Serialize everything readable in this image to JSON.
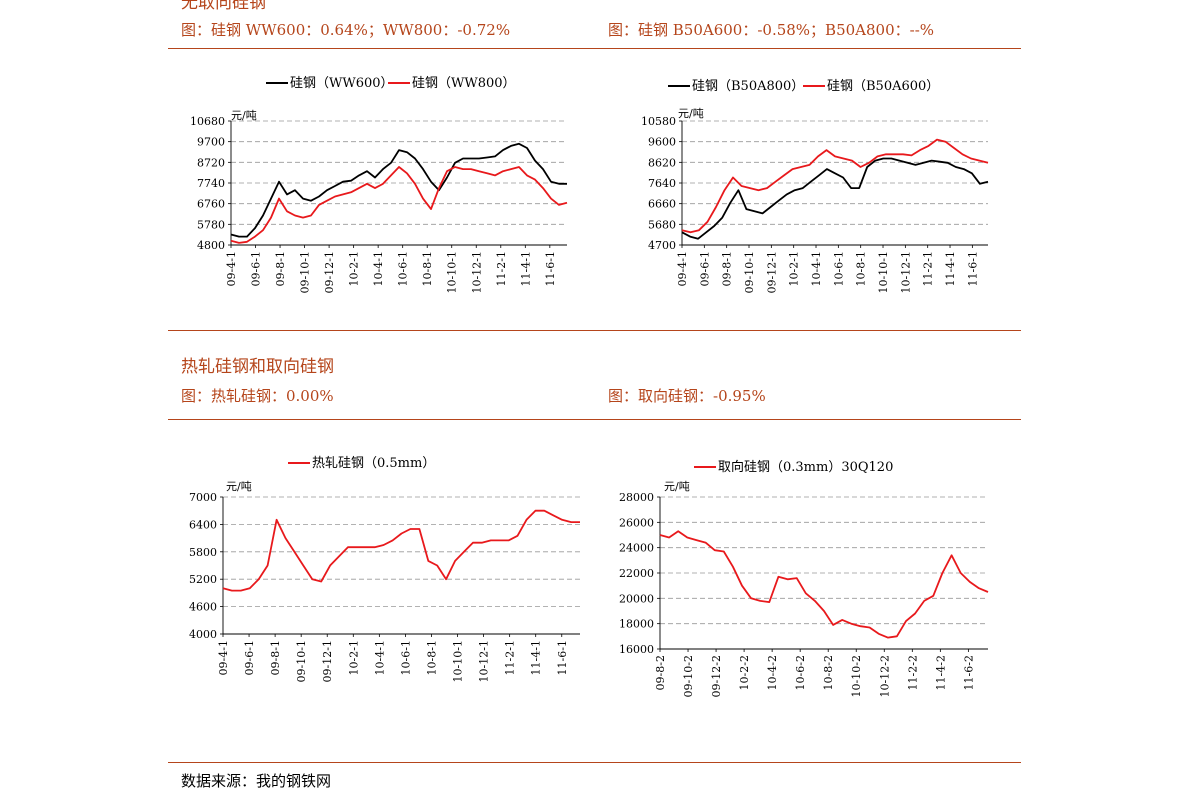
{
  "section1": {
    "title": "无取向硅钢",
    "fig_left": "图：硅钢 WW600：0.64%；WW800：-0.72%",
    "fig_right": "图：硅钢 B50A600：-0.58%；B50A800：--%"
  },
  "section2": {
    "title": "热轧硅钢和取向硅钢",
    "fig_left": "图：热轧硅钢：0.00%",
    "fig_right": "图：取向硅钢：-0.95%"
  },
  "source": "数据来源：我的钢铁网",
  "colors": {
    "accent": "#b5451b",
    "black_series": "#000000",
    "red_series": "#e8191c",
    "grid": "#999999"
  },
  "chart_data": [
    {
      "id": "ww",
      "type": "line",
      "unit": "元/吨",
      "ylim": [
        4800,
        10680
      ],
      "yticks": [
        4800,
        5780,
        6760,
        7740,
        8720,
        9700,
        10680
      ],
      "xticks": [
        "09-4-1",
        "09-6-1",
        "09-8-1",
        "09-10-1",
        "09-12-1",
        "10-2-1",
        "10-4-1",
        "10-6-1",
        "10-8-1",
        "10-10-1",
        "10-12-1",
        "11-2-1",
        "11-4-1",
        "11-6-1"
      ],
      "grid": true,
      "legend": "top",
      "series": [
        {
          "name": "硅钢（WW600）",
          "color": "#000000",
          "values": [
            5300,
            5200,
            5200,
            5600,
            6200,
            7000,
            7800,
            7200,
            7400,
            7000,
            6900,
            7100,
            7400,
            7600,
            7800,
            7850,
            8100,
            8300,
            8000,
            8400,
            8700,
            9300,
            9200,
            8900,
            8400,
            7800,
            7400,
            8000,
            8700,
            8900,
            8900,
            8900,
            8950,
            9000,
            9300,
            9500,
            9600,
            9400,
            8800,
            8400,
            7800,
            7700,
            7700
          ]
        },
        {
          "name": "硅钢（WW800）",
          "color": "#e8191c",
          "values": [
            5000,
            4900,
            4950,
            5200,
            5500,
            6100,
            7000,
            6400,
            6200,
            6100,
            6200,
            6700,
            6900,
            7100,
            7200,
            7300,
            7500,
            7700,
            7500,
            7700,
            8100,
            8500,
            8200,
            7700,
            7000,
            6500,
            7500,
            8300,
            8500,
            8400,
            8400,
            8300,
            8200,
            8100,
            8300,
            8400,
            8500,
            8100,
            7900,
            7500,
            7000,
            6700,
            6800
          ]
        }
      ]
    },
    {
      "id": "b50",
      "type": "line",
      "unit": "元/吨",
      "ylim": [
        4700,
        10580
      ],
      "yticks": [
        4700,
        5680,
        6660,
        7640,
        8620,
        9600,
        10580
      ],
      "xticks": [
        "09-4-1",
        "09-6-1",
        "09-8-1",
        "09-10-1",
        "09-12-1",
        "10-2-1",
        "10-4-1",
        "10-6-1",
        "10-8-1",
        "10-10-1",
        "10-12-1",
        "11-2-1",
        "11-4-1",
        "11-6-1"
      ],
      "grid": true,
      "legend": "top",
      "series": [
        {
          "name": "硅钢（B50A800）",
          "color": "#000000",
          "values": [
            5300,
            5100,
            5000,
            5300,
            5600,
            6000,
            6700,
            7300,
            6400,
            6300,
            6200,
            6500,
            6800,
            7100,
            7300,
            7400,
            7700,
            8000,
            8300,
            8100,
            7900,
            7400,
            7400,
            8400,
            8700,
            8800,
            8800,
            8700,
            8600,
            8500,
            8600,
            8700,
            8650,
            8600,
            8400,
            8300,
            8100,
            7600,
            7700
          ]
        },
        {
          "name": "硅钢（B50A600）",
          "color": "#e8191c",
          "values": [
            5400,
            5300,
            5400,
            5800,
            6500,
            7300,
            7900,
            7500,
            7400,
            7300,
            7400,
            7700,
            8000,
            8300,
            8400,
            8500,
            8900,
            9200,
            8900,
            8800,
            8700,
            8400,
            8600,
            8900,
            9000,
            9000,
            9000,
            8950,
            9200,
            9400,
            9700,
            9600,
            9300,
            9000,
            8800,
            8700,
            8600
          ]
        }
      ]
    },
    {
      "id": "hot",
      "type": "line",
      "unit": "元/吨",
      "ylim": [
        4000,
        7000
      ],
      "yticks": [
        4000,
        4600,
        5200,
        5800,
        6400,
        7000
      ],
      "xticks": [
        "09-4-1",
        "09-6-1",
        "09-8-1",
        "09-10-1",
        "09-12-1",
        "10-2-1",
        "10-4-1",
        "10-6-1",
        "10-8-1",
        "10-10-1",
        "10-12-1",
        "11-2-1",
        "11-4-1",
        "11-6-1"
      ],
      "grid": true,
      "legend": "top",
      "series": [
        {
          "name": "热轧硅钢（0.5mm）",
          "color": "#e8191c",
          "values": [
            5000,
            4950,
            4950,
            5000,
            5200,
            5500,
            6500,
            6100,
            5800,
            5500,
            5200,
            5150,
            5500,
            5700,
            5900,
            5900,
            5900,
            5900,
            5950,
            6050,
            6200,
            6300,
            6300,
            5600,
            5500,
            5200,
            5600,
            5800,
            6000,
            6000,
            6050,
            6050,
            6050,
            6150,
            6500,
            6700,
            6700,
            6600,
            6500,
            6450,
            6450
          ]
        }
      ]
    },
    {
      "id": "grain",
      "type": "line",
      "unit": "元/吨",
      "ylim": [
        16000,
        28000
      ],
      "yticks": [
        16000,
        18000,
        20000,
        22000,
        24000,
        26000,
        28000
      ],
      "xticks": [
        "09-8-2",
        "09-10-2",
        "09-12-2",
        "10-2-2",
        "10-4-2",
        "10-6-2",
        "10-8-2",
        "10-10-2",
        "10-12-2",
        "11-2-2",
        "11-4-2",
        "11-6-2"
      ],
      "grid": true,
      "legend": "top",
      "series": [
        {
          "name": "取向硅钢（0.3mm）30Q120",
          "color": "#e8191c",
          "values": [
            25000,
            24800,
            25300,
            24800,
            24600,
            24400,
            23800,
            23700,
            22500,
            21000,
            20000,
            19800,
            19700,
            21700,
            21500,
            21600,
            20400,
            19800,
            19000,
            17900,
            18300,
            18000,
            17800,
            17700,
            17200,
            16900,
            17000,
            18200,
            18800,
            19800,
            20200,
            22000,
            23400,
            22000,
            21300,
            20800,
            20500
          ]
        }
      ]
    }
  ],
  "chart_texts": [
    {
      "legend": [
        "硅钢（WW600）",
        "硅钢（WW800）"
      ]
    },
    {
      "legend": [
        "硅钢（B50A800）",
        "硅钢（B50A600）"
      ]
    },
    {
      "legend": [
        "热轧硅钢（0.5mm）"
      ]
    },
    {
      "legend": [
        "取向硅钢（0.3mm）30Q120"
      ]
    }
  ]
}
